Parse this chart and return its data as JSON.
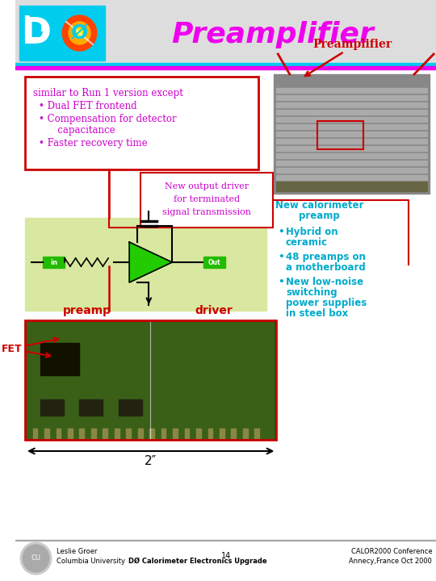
{
  "title": "Preamplifier",
  "title_color": "#ee00ee",
  "title_fontsize": 26,
  "bg_color": "#ffffff",
  "header_bg": "#dddddd",
  "header_bar1_color": "#00ccee",
  "header_bar2_color": "#ee00ee",
  "logo_bg": "#00ccee",
  "left_box_text_line0": "similar to Run 1 version except",
  "left_box_text_line1": "• Dual FET frontend",
  "left_box_text_line2": "• Compensation for detector",
  "left_box_text_line3": "   capacitance",
  "left_box_text_line4": "• Faster recovery time",
  "left_box_text_color": "#cc00cc",
  "left_box_border": "#cc0000",
  "left_box_bg": "#ffffff",
  "driver_box_line0": "New output driver",
  "driver_box_line1": "for terminated",
  "driver_box_line2": "signal transmission",
  "driver_box_text_color": "#cc00cc",
  "driver_box_border": "#cc0000",
  "driver_box_bg": "#ffffff",
  "circuit_bg": "#d8e8a0",
  "right_top_label": "Preamplifier",
  "right_top_label_color": "#cc0000",
  "right_title_line1": "New calorimeter",
  "right_title_line2": "preamp",
  "right_bullet1_line1": "Hybrid on",
  "right_bullet1_line2": "ceramic",
  "right_bullet2_line1": "48 preamps on",
  "right_bullet2_line2": "a motherboard",
  "right_bullet3_line1": "New low-noise",
  "right_bullet3_line2": "switching",
  "right_bullet3_line3": "power supplies",
  "right_bullet3_line4": "in steel box",
  "right_text_color": "#00aacc",
  "label_preamp": "preamp",
  "label_driver": "driver",
  "label_fet": "FET",
  "label_2inch": "2″",
  "label_color": "#cc0000",
  "footer_left1": "Leslie Groer",
  "footer_left2": "Columbia University",
  "footer_center": "14",
  "footer_right1": "CALOR2000 Conference",
  "footer_right2": "Annecy,France Oct 2000",
  "footer_right2b": "DØ Calorimeter Electronics Upgrade",
  "footer_color": "#000000",
  "circ_green": "#22cc00",
  "circ_label_green": "#22bb00",
  "red_line": "#cc0000",
  "dark_red_line": "#990000"
}
